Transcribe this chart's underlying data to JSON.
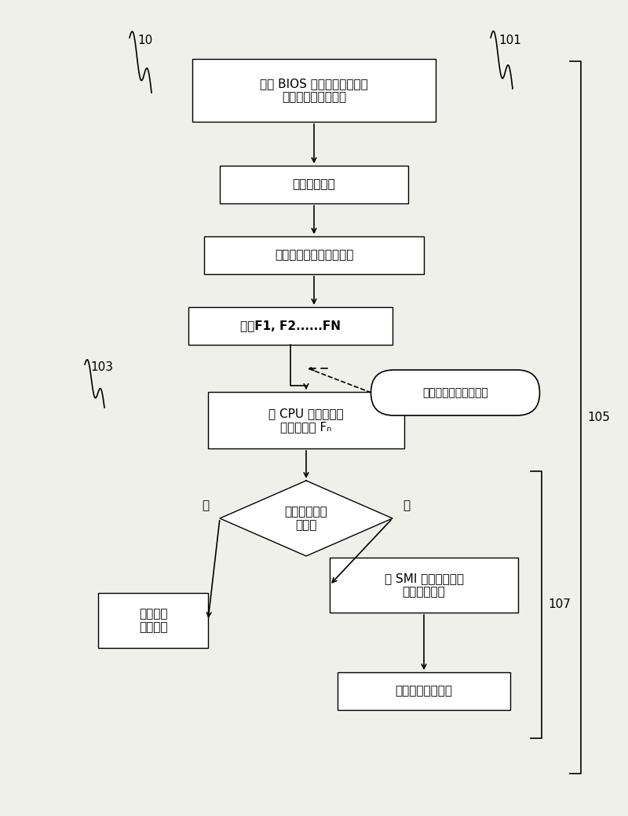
{
  "bg_color": "#f0f0eb",
  "box_color": "#ffffff",
  "box_edge": "#000000",
  "text_color": "#000000",
  "arrow_color": "#000000",
  "label_10": "10",
  "label_101": "101",
  "label_103": "103",
  "label_105": "105",
  "label_107": "107",
  "box1_text": "利用 BIOS 的操作界面来设定\n第二频率的前端总线",
  "box2_text": "载入操作系统",
  "box3_text": "芯片组发生系统中断信号",
  "box4_text": "决定F1, F2......FN",
  "box5_text": "将 CPU 的前端总线\n频率调整到 Fₙ",
  "diamond_text": "已调整到第二\n频率？",
  "box_left_text": "中断返回\n操作系统",
  "box_right_text": "令 SMI 在预定时间后\n发生系统中断",
  "box_bottom_text": "中断返回操作系统",
  "oval_text": "第二次以后中断进入点",
  "yes_label": "是",
  "no_label": "否"
}
